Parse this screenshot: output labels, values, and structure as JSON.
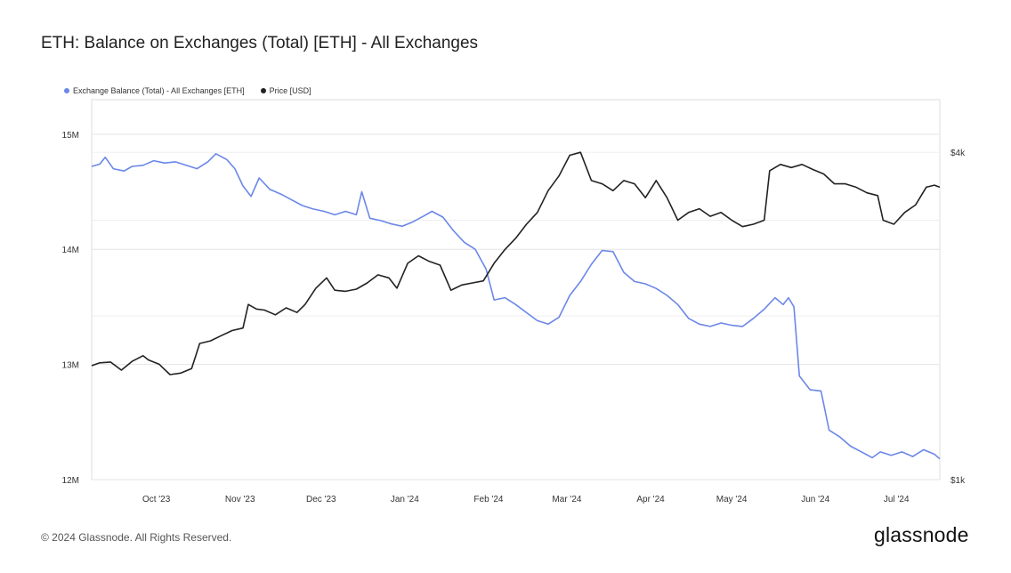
{
  "header": {
    "title": "ETH: Balance on Exchanges (Total) [ETH] - All Exchanges"
  },
  "footer": {
    "copyright": "© 2024 Glassnode. All Rights Reserved.",
    "logo": "glassnode"
  },
  "colors": {
    "balance": "#6b87e8",
    "price": "#222222",
    "grid": "#e4e4e4"
  },
  "chart_data": {
    "type": "line",
    "title": "ETH: Balance on Exchanges (Total) [ETH] - All Exchanges",
    "legend_position": "top-left",
    "grid": true,
    "x_ticks": [
      "Oct '23",
      "Nov '23",
      "Dec '23",
      "Jan '24",
      "Feb '24",
      "Mar '24",
      "Apr '24",
      "May '24",
      "Jun '24",
      "Jul '24"
    ],
    "y_left": {
      "ticks": [
        "12M",
        "13M",
        "14M",
        "15M"
      ],
      "ylim": [
        12000000,
        15300000
      ]
    },
    "y_right": {
      "ticks": [
        "$1k",
        "$4k"
      ],
      "scale": "log",
      "ylim": [
        1000,
        5000
      ]
    },
    "series": [
      {
        "name": "Exchange Balance (Total) - All Exchanges [ETH]",
        "axis": "left",
        "color": "#6b87e8",
        "points": [
          [
            "2023-09-13",
            14720000
          ],
          [
            "2023-09-16",
            14740000
          ],
          [
            "2023-09-18",
            14800000
          ],
          [
            "2023-09-21",
            14700000
          ],
          [
            "2023-09-25",
            14680000
          ],
          [
            "2023-09-28",
            14720000
          ],
          [
            "2023-10-02",
            14730000
          ],
          [
            "2023-10-06",
            14770000
          ],
          [
            "2023-10-10",
            14750000
          ],
          [
            "2023-10-14",
            14760000
          ],
          [
            "2023-10-18",
            14730000
          ],
          [
            "2023-10-22",
            14700000
          ],
          [
            "2023-10-26",
            14760000
          ],
          [
            "2023-10-29",
            14830000
          ],
          [
            "2023-11-02",
            14780000
          ],
          [
            "2023-11-05",
            14700000
          ],
          [
            "2023-11-08",
            14550000
          ],
          [
            "2023-11-11",
            14460000
          ],
          [
            "2023-11-14",
            14620000
          ],
          [
            "2023-11-18",
            14520000
          ],
          [
            "2023-11-22",
            14480000
          ],
          [
            "2023-11-26",
            14430000
          ],
          [
            "2023-11-30",
            14380000
          ],
          [
            "2023-12-04",
            14350000
          ],
          [
            "2023-12-08",
            14330000
          ],
          [
            "2023-12-12",
            14300000
          ],
          [
            "2023-12-16",
            14330000
          ],
          [
            "2023-12-20",
            14300000
          ],
          [
            "2023-12-22",
            14500000
          ],
          [
            "2023-12-25",
            14270000
          ],
          [
            "2023-12-29",
            14250000
          ],
          [
            "2024-01-02",
            14220000
          ],
          [
            "2024-01-06",
            14200000
          ],
          [
            "2024-01-10",
            14240000
          ],
          [
            "2024-01-14",
            14290000
          ],
          [
            "2024-01-17",
            14330000
          ],
          [
            "2024-01-21",
            14280000
          ],
          [
            "2024-01-25",
            14160000
          ],
          [
            "2024-01-29",
            14060000
          ],
          [
            "2024-02-02",
            14000000
          ],
          [
            "2024-02-06",
            13830000
          ],
          [
            "2024-02-09",
            13560000
          ],
          [
            "2024-02-13",
            13580000
          ],
          [
            "2024-02-17",
            13520000
          ],
          [
            "2024-02-21",
            13450000
          ],
          [
            "2024-02-25",
            13380000
          ],
          [
            "2024-02-29",
            13350000
          ],
          [
            "2024-03-04",
            13410000
          ],
          [
            "2024-03-08",
            13600000
          ],
          [
            "2024-03-12",
            13720000
          ],
          [
            "2024-03-16",
            13870000
          ],
          [
            "2024-03-20",
            13990000
          ],
          [
            "2024-03-24",
            13980000
          ],
          [
            "2024-03-28",
            13800000
          ],
          [
            "2024-04-01",
            13720000
          ],
          [
            "2024-04-05",
            13700000
          ],
          [
            "2024-04-09",
            13660000
          ],
          [
            "2024-04-13",
            13600000
          ],
          [
            "2024-04-17",
            13520000
          ],
          [
            "2024-04-21",
            13400000
          ],
          [
            "2024-04-25",
            13350000
          ],
          [
            "2024-04-29",
            13330000
          ],
          [
            "2024-05-03",
            13360000
          ],
          [
            "2024-05-07",
            13340000
          ],
          [
            "2024-05-11",
            13330000
          ],
          [
            "2024-05-15",
            13400000
          ],
          [
            "2024-05-19",
            13480000
          ],
          [
            "2024-05-23",
            13580000
          ],
          [
            "2024-05-26",
            13520000
          ],
          [
            "2024-05-28",
            13580000
          ],
          [
            "2024-05-30",
            13500000
          ],
          [
            "2024-06-01",
            12900000
          ],
          [
            "2024-06-05",
            12780000
          ],
          [
            "2024-06-09",
            12770000
          ],
          [
            "2024-06-12",
            12430000
          ],
          [
            "2024-06-16",
            12370000
          ],
          [
            "2024-06-20",
            12290000
          ],
          [
            "2024-06-24",
            12240000
          ],
          [
            "2024-06-28",
            12190000
          ],
          [
            "2024-07-01",
            12240000
          ],
          [
            "2024-07-05",
            12210000
          ],
          [
            "2024-07-09",
            12240000
          ],
          [
            "2024-07-13",
            12200000
          ],
          [
            "2024-07-17",
            12260000
          ],
          [
            "2024-07-21",
            12220000
          ],
          [
            "2024-07-23",
            12180000
          ]
        ]
      },
      {
        "name": "Price [USD]",
        "axis": "right",
        "color": "#222222",
        "points": [
          [
            "2023-09-13",
            1620
          ],
          [
            "2023-09-16",
            1640
          ],
          [
            "2023-09-20",
            1645
          ],
          [
            "2023-09-24",
            1590
          ],
          [
            "2023-09-28",
            1650
          ],
          [
            "2023-10-02",
            1690
          ],
          [
            "2023-10-04",
            1660
          ],
          [
            "2023-10-08",
            1630
          ],
          [
            "2023-10-12",
            1560
          ],
          [
            "2023-10-16",
            1570
          ],
          [
            "2023-10-20",
            1600
          ],
          [
            "2023-10-23",
            1780
          ],
          [
            "2023-10-27",
            1800
          ],
          [
            "2023-10-31",
            1840
          ],
          [
            "2023-11-04",
            1880
          ],
          [
            "2023-11-08",
            1900
          ],
          [
            "2023-11-10",
            2100
          ],
          [
            "2023-11-13",
            2060
          ],
          [
            "2023-11-16",
            2050
          ],
          [
            "2023-11-20",
            2010
          ],
          [
            "2023-11-24",
            2070
          ],
          [
            "2023-11-28",
            2030
          ],
          [
            "2023-12-01",
            2100
          ],
          [
            "2023-12-05",
            2250
          ],
          [
            "2023-12-09",
            2350
          ],
          [
            "2023-12-12",
            2230
          ],
          [
            "2023-12-16",
            2220
          ],
          [
            "2023-12-20",
            2240
          ],
          [
            "2023-12-24",
            2300
          ],
          [
            "2023-12-28",
            2380
          ],
          [
            "2024-01-01",
            2350
          ],
          [
            "2024-01-04",
            2250
          ],
          [
            "2024-01-08",
            2500
          ],
          [
            "2024-01-12",
            2580
          ],
          [
            "2024-01-16",
            2520
          ],
          [
            "2024-01-20",
            2480
          ],
          [
            "2024-01-24",
            2230
          ],
          [
            "2024-01-28",
            2280
          ],
          [
            "2024-02-01",
            2300
          ],
          [
            "2024-02-05",
            2320
          ],
          [
            "2024-02-09",
            2500
          ],
          [
            "2024-02-13",
            2650
          ],
          [
            "2024-02-17",
            2780
          ],
          [
            "2024-02-21",
            2950
          ],
          [
            "2024-02-25",
            3100
          ],
          [
            "2024-02-29",
            3400
          ],
          [
            "2024-03-04",
            3620
          ],
          [
            "2024-03-08",
            3950
          ],
          [
            "2024-03-12",
            4000
          ],
          [
            "2024-03-16",
            3550
          ],
          [
            "2024-03-20",
            3500
          ],
          [
            "2024-03-24",
            3400
          ],
          [
            "2024-03-28",
            3550
          ],
          [
            "2024-04-01",
            3500
          ],
          [
            "2024-04-05",
            3300
          ],
          [
            "2024-04-09",
            3550
          ],
          [
            "2024-04-13",
            3300
          ],
          [
            "2024-04-17",
            3000
          ],
          [
            "2024-04-21",
            3100
          ],
          [
            "2024-04-25",
            3150
          ],
          [
            "2024-04-29",
            3050
          ],
          [
            "2024-05-03",
            3100
          ],
          [
            "2024-05-07",
            3000
          ],
          [
            "2024-05-11",
            2920
          ],
          [
            "2024-05-15",
            2950
          ],
          [
            "2024-05-19",
            3000
          ],
          [
            "2024-05-21",
            3700
          ],
          [
            "2024-05-25",
            3800
          ],
          [
            "2024-05-29",
            3750
          ],
          [
            "2024-06-02",
            3800
          ],
          [
            "2024-06-06",
            3720
          ],
          [
            "2024-06-10",
            3650
          ],
          [
            "2024-06-14",
            3500
          ],
          [
            "2024-06-18",
            3500
          ],
          [
            "2024-06-22",
            3450
          ],
          [
            "2024-06-26",
            3370
          ],
          [
            "2024-06-30",
            3330
          ],
          [
            "2024-07-02",
            3000
          ],
          [
            "2024-07-06",
            2950
          ],
          [
            "2024-07-10",
            3100
          ],
          [
            "2024-07-14",
            3200
          ],
          [
            "2024-07-18",
            3450
          ],
          [
            "2024-07-21",
            3480
          ],
          [
            "2024-07-23",
            3450
          ]
        ]
      }
    ]
  }
}
